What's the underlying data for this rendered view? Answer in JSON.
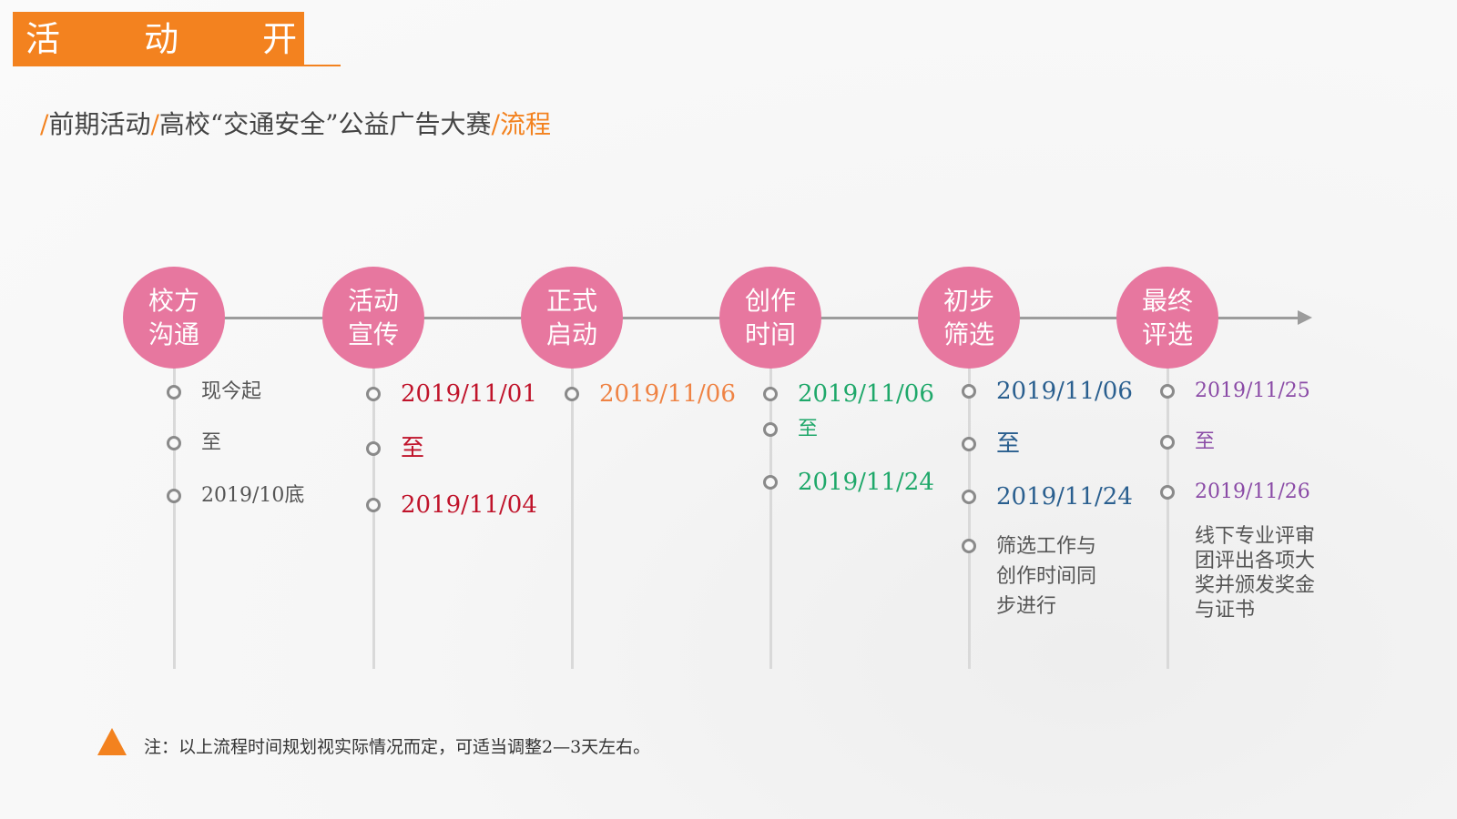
{
  "header": {
    "title": "活 动 开 展"
  },
  "subtitle": {
    "slash1": "/",
    "part1": "前期活动",
    "slash2": "/",
    "part2": "高校“交通安全”公益广告大赛",
    "slash3": "/",
    "part3": "流程"
  },
  "colors": {
    "accent": "#f3821f",
    "stage_circle": "#e7779f",
    "red": "#c0142b",
    "orange": "#ef8344",
    "green": "#1fa86a",
    "blue": "#2a5f8f",
    "purple": "#8a4aa6",
    "gray": "#555555"
  },
  "stages": [
    {
      "line1": "校方",
      "line2": "沟通",
      "items": [
        {
          "text": "现今起",
          "color": "gray"
        },
        {
          "text": "至",
          "color": "gray"
        },
        {
          "text": "2019/10底",
          "color": "gray"
        }
      ]
    },
    {
      "line1": "活动",
      "line2": "宣传",
      "items": [
        {
          "text": "2019/11/01",
          "color": "red"
        },
        {
          "text": "至",
          "color": "red"
        },
        {
          "text": "2019/11/04",
          "color": "red"
        }
      ]
    },
    {
      "line1": "正式",
      "line2": "启动",
      "items": [
        {
          "text": "2019/11/06",
          "color": "orange"
        }
      ]
    },
    {
      "line1": "创作",
      "line2": "时间",
      "items": [
        {
          "text": "2019/11/06",
          "color": "green"
        },
        {
          "text": "至",
          "color": "green"
        },
        {
          "text": "2019/11/24",
          "color": "green"
        }
      ]
    },
    {
      "line1": "初步",
      "line2": "筛选",
      "items": [
        {
          "text": "2019/11/06",
          "color": "blue"
        },
        {
          "text": "至",
          "color": "blue"
        },
        {
          "text": "2019/11/24",
          "color": "blue"
        },
        {
          "text": "筛选工作与创作时间同步进行",
          "color": "gray"
        }
      ]
    },
    {
      "line1": "最终",
      "line2": "评选",
      "items": [
        {
          "text": "2019/11/25",
          "color": "purple"
        },
        {
          "text": "至",
          "color": "purple"
        },
        {
          "text": "2019/11/26",
          "color": "purple"
        },
        {
          "text": "线下专业评审团评出各项大奖并颁发奖金与证书",
          "color": "gray"
        }
      ]
    }
  ],
  "note": {
    "text": "注：以上流程时间规划视实际情况而定，可适当调整2—3天左右。"
  }
}
